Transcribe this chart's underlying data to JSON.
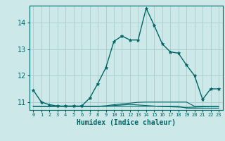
{
  "title": "",
  "xlabel": "Humidex (Indice chaleur)",
  "ylabel": "",
  "bg_color": "#cce8e8",
  "line_color": "#006666",
  "grid_color": "#aacccc",
  "xlim": [
    -0.5,
    23.5
  ],
  "ylim": [
    10.7,
    14.65
  ],
  "yticks": [
    11,
    12,
    13,
    14
  ],
  "xticks": [
    0,
    1,
    2,
    3,
    4,
    5,
    6,
    7,
    8,
    9,
    10,
    11,
    12,
    13,
    14,
    15,
    16,
    17,
    18,
    19,
    20,
    21,
    22,
    23
  ],
  "series": [
    {
      "x": [
        0,
        1,
        2,
        3,
        4,
        5,
        6,
        7,
        8,
        9,
        10,
        11,
        12,
        13,
        14,
        15,
        16,
        17,
        18,
        19,
        20,
        21,
        22,
        23
      ],
      "y": [
        11.45,
        11.0,
        10.9,
        10.85,
        10.85,
        10.85,
        10.85,
        11.15,
        11.7,
        12.3,
        13.3,
        13.5,
        13.35,
        13.35,
        14.55,
        13.9,
        13.2,
        12.9,
        12.85,
        12.4,
        12.0,
        11.1,
        11.5,
        11.5
      ],
      "marker": true
    },
    {
      "x": [
        0,
        1,
        2,
        3,
        4,
        5,
        6,
        7,
        8,
        9,
        10,
        11,
        12,
        13,
        14,
        15,
        16,
        17,
        18,
        19,
        20,
        21,
        22,
        23
      ],
      "y": [
        10.84,
        10.84,
        10.84,
        10.84,
        10.84,
        10.84,
        10.84,
        10.84,
        10.84,
        10.86,
        10.9,
        10.93,
        10.96,
        10.99,
        11.0,
        11.0,
        11.0,
        11.0,
        11.0,
        11.0,
        10.84,
        10.84,
        10.84,
        10.84
      ],
      "marker": false
    },
    {
      "x": [
        0,
        1,
        2,
        3,
        4,
        5,
        6,
        7,
        8,
        9,
        10,
        11,
        12,
        13,
        14,
        15,
        16,
        17,
        18,
        19,
        20,
        21,
        22,
        23
      ],
      "y": [
        10.84,
        10.84,
        10.84,
        10.84,
        10.84,
        10.84,
        10.84,
        10.84,
        10.84,
        10.84,
        10.87,
        10.89,
        10.91,
        10.89,
        10.87,
        10.85,
        10.83,
        10.82,
        10.81,
        10.8,
        10.81,
        10.82,
        10.83,
        10.83
      ],
      "marker": false
    },
    {
      "x": [
        0,
        1,
        2,
        3,
        4,
        5,
        6,
        7,
        8,
        9,
        10,
        11,
        12,
        13,
        14,
        15,
        16,
        17,
        18,
        19,
        20,
        21,
        22,
        23
      ],
      "y": [
        10.84,
        10.84,
        10.84,
        10.84,
        10.84,
        10.84,
        10.84,
        10.84,
        10.84,
        10.84,
        10.84,
        10.84,
        10.84,
        10.84,
        10.84,
        10.84,
        10.84,
        10.84,
        10.84,
        10.77,
        10.77,
        10.77,
        10.77,
        10.77
      ],
      "marker": false
    }
  ]
}
